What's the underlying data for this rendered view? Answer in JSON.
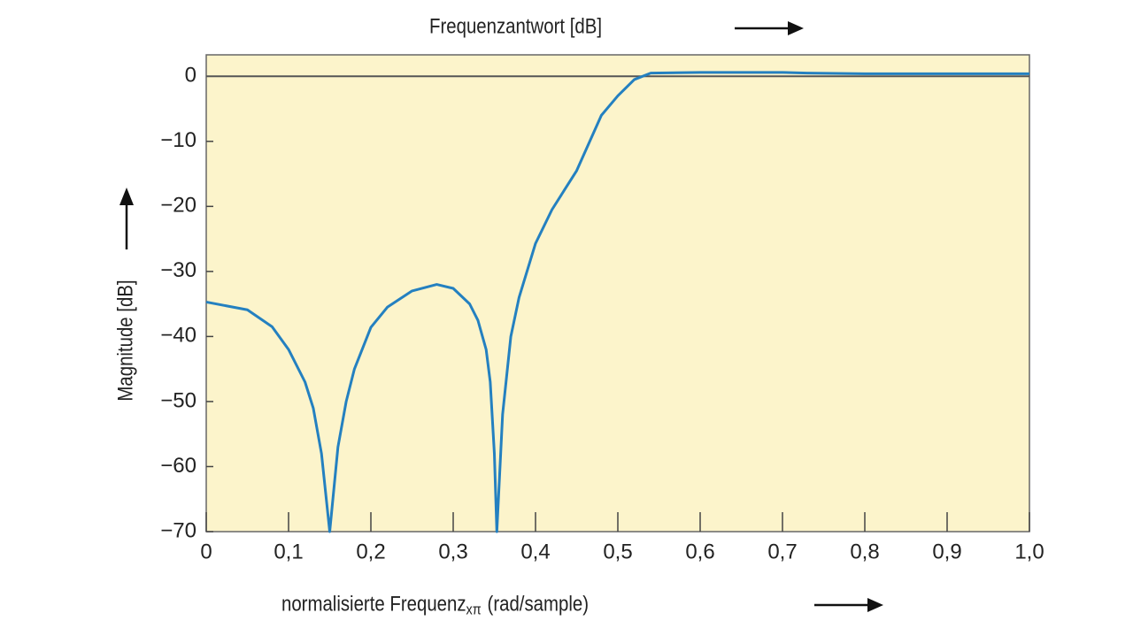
{
  "chart_data": {
    "type": "line",
    "title": "Frequenzantwort [dB]",
    "ylabel": "Magnitude [dB]",
    "xlabel": {
      "main": "normalisierte Frequenz",
      "subscript": "xπ",
      "suffix": "(rad/sample)"
    },
    "x": [
      0,
      0.05,
      0.08,
      0.1,
      0.12,
      0.13,
      0.14,
      0.15,
      0.16,
      0.17,
      0.18,
      0.2,
      0.22,
      0.25,
      0.28,
      0.3,
      0.32,
      0.33,
      0.34,
      0.345,
      0.35,
      0.353,
      0.36,
      0.37,
      0.38,
      0.4,
      0.42,
      0.45,
      0.48,
      0.5,
      0.52,
      0.54,
      0.6,
      0.7,
      0.73,
      0.8,
      1.0
    ],
    "values": [
      -34.7,
      -35.9,
      -38.5,
      -42,
      -47,
      -51,
      -58,
      -70,
      -57,
      -50,
      -45,
      -38.6,
      -35.5,
      -33,
      -32,
      -32.6,
      -35,
      -37.5,
      -42,
      -47,
      -58,
      -70,
      -52,
      -40,
      -34,
      -25.7,
      -20.5,
      -14.5,
      -6,
      -3,
      -0.5,
      0.5,
      0.6,
      0.6,
      0.5,
      0.4,
      0.4
    ],
    "color": "#2480c0",
    "background": "#fcf4cb",
    "zero_line": true,
    "xlim": [
      0,
      1.0
    ],
    "ylim": [
      -70,
      3.3
    ],
    "xticks": [
      0,
      {
        "value": 0.1,
        "label": "0,1"
      },
      {
        "value": 0.2,
        "label": "0,2"
      },
      {
        "value": 0.3,
        "label": "0,3"
      },
      {
        "value": 0.4,
        "label": "0,4"
      },
      {
        "value": 0.5,
        "label": "0,5"
      },
      {
        "value": 0.6,
        "label": "0,6"
      },
      {
        "value": 0.7,
        "label": "0,7"
      },
      {
        "value": 0.8,
        "label": "0,8"
      },
      {
        "value": 0.9,
        "label": "0,9"
      },
      {
        "value": 1.0,
        "label": "1,0"
      }
    ],
    "yticks": [
      0,
      {
        "value": -10,
        "label": "−10"
      },
      {
        "value": -20,
        "label": "−20"
      },
      {
        "value": -30,
        "label": "−30"
      },
      {
        "value": -40,
        "label": "−40"
      },
      {
        "value": -50,
        "label": "−50"
      },
      {
        "value": -60,
        "label": "−60"
      },
      {
        "value": -70,
        "label": "−70"
      }
    ],
    "grid": false
  }
}
